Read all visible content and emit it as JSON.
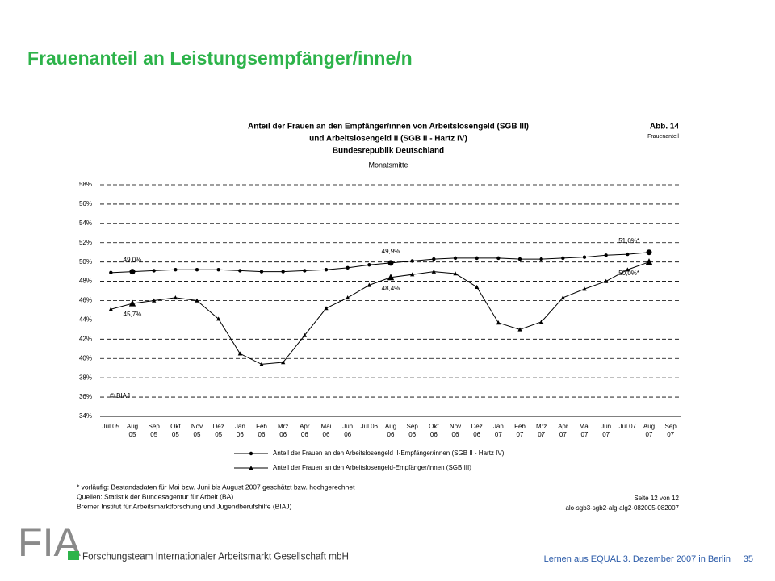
{
  "slide_title": "Frauenanteil an Leistungsempfänger/inne/n",
  "chart_data": {
    "type": "line",
    "title": [
      "Anteil der Frauen an den Empfänger/innen von Arbeitslosengeld (SGB III)",
      "und Arbeitslosengeld II (SGB II - Hartz IV)",
      "Bundesrepublik Deutschland"
    ],
    "subtitle": "Monatsmitte",
    "figure_label": "Abb. 14",
    "figure_name": "Frauenanteil",
    "copyright": "© BIAJ",
    "categories": [
      "Jul 05",
      "Aug 05",
      "Sep 05",
      "Okt 05",
      "Nov 05",
      "Dez 05",
      "Jan 06",
      "Feb 06",
      "Mrz 06",
      "Apr 06",
      "Mai 06",
      "Jun 06",
      "Jul 06",
      "Aug 06",
      "Sep 06",
      "Okt 06",
      "Nov 06",
      "Dez 06",
      "Jan 07",
      "Feb 07",
      "Mrz 07",
      "Apr 07",
      "Mai 07",
      "Jun 07",
      "Jul 07",
      "Aug 07",
      "Sep 07"
    ],
    "series": [
      {
        "name": "Anteil der Frauen an den Arbeitslosengeld II-Empfänger/innen (SGB II - Hartz IV)",
        "color": "#000000",
        "marker": "circle",
        "values": [
          48.9,
          49.0,
          49.1,
          49.2,
          49.2,
          49.2,
          49.1,
          49.0,
          49.0,
          49.1,
          49.2,
          49.4,
          49.7,
          49.9,
          50.1,
          50.3,
          50.4,
          50.4,
          50.4,
          50.3,
          50.3,
          50.4,
          50.5,
          50.7,
          50.8,
          51.0,
          null
        ],
        "value_labels": [
          null,
          "49,0%",
          null,
          null,
          null,
          null,
          null,
          null,
          null,
          null,
          null,
          null,
          null,
          "49,9%",
          null,
          null,
          null,
          null,
          null,
          null,
          null,
          null,
          null,
          null,
          null,
          "51,0%*",
          null
        ]
      },
      {
        "name": "Anteil der Frauen an den Arbeitslosengeld-Empfänger/innen (SGB III)",
        "color": "#000000",
        "marker": "triangle",
        "values": [
          45.1,
          45.7,
          46.0,
          46.3,
          46.0,
          44.1,
          40.5,
          39.4,
          39.6,
          42.4,
          45.2,
          46.3,
          47.6,
          48.4,
          48.7,
          49.0,
          48.8,
          47.4,
          43.7,
          43.0,
          43.8,
          46.3,
          47.2,
          48.0,
          49.2,
          50.0,
          null
        ],
        "value_labels": [
          null,
          "45,7%",
          null,
          null,
          null,
          null,
          null,
          null,
          null,
          null,
          null,
          null,
          null,
          "48,4%",
          null,
          null,
          null,
          null,
          null,
          null,
          null,
          null,
          null,
          null,
          null,
          "50,0%*",
          null
        ]
      }
    ],
    "ylim": [
      34,
      58
    ],
    "yticks": [
      {
        "value": 34,
        "label": "34%"
      },
      {
        "value": 36,
        "label": "36%"
      },
      {
        "value": 38,
        "label": "38%"
      },
      {
        "value": 40,
        "label": "40%"
      },
      {
        "value": 42,
        "label": "42%"
      },
      {
        "value": 44,
        "label": "44%"
      },
      {
        "value": 46,
        "label": "46%"
      },
      {
        "value": 48,
        "label": "48%"
      },
      {
        "value": 50,
        "label": "50%"
      },
      {
        "value": 52,
        "label": "52%"
      },
      {
        "value": 54,
        "label": "54%"
      },
      {
        "value": 56,
        "label": "56%"
      },
      {
        "value": 58,
        "label": "58%"
      }
    ],
    "grid": true,
    "notes": [
      "* vorläufig: Bestandsdaten für Mai bzw. Juni bis August 2007 geschätzt bzw. hochgerechnet",
      "Quellen: Statistik der Bundesagentur für Arbeit (BA)",
      "Bremer Institut für Arbeitsmarktforschung und Jugendberufshilfe (BIAJ)"
    ],
    "page_ref": "Seite 12 von 12",
    "file_ref": "alo-sgb3-sgb2-alg-alg2-082005-082007"
  },
  "logo": {
    "mark": "FIA",
    "company": "Forschungsteam Internationaler Arbeitsmarkt Gesellschaft mbH"
  },
  "footer": {
    "text": "Lernen aus EQUAL 3. Dezember 2007 in Berlin",
    "page": "35"
  }
}
